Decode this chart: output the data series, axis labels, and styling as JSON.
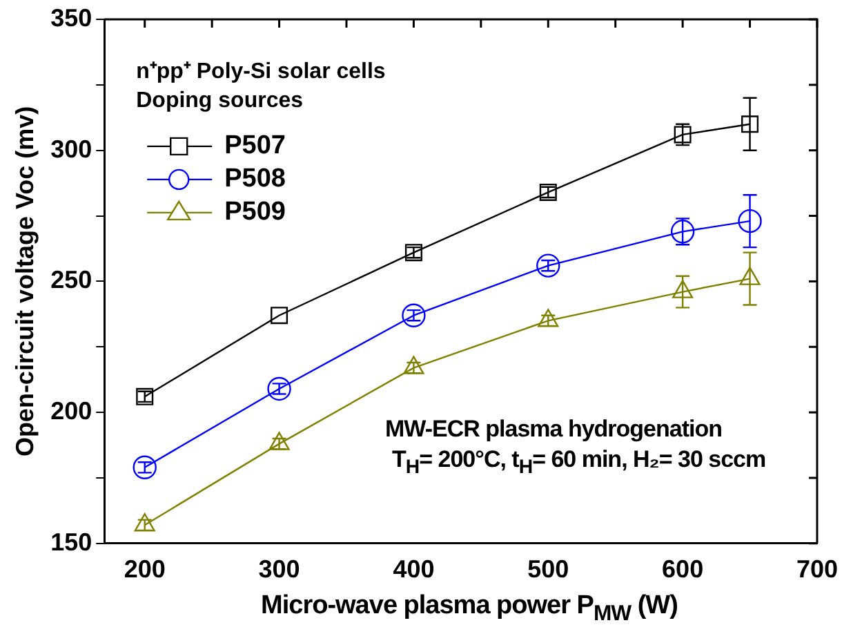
{
  "chart_data": {
    "type": "line",
    "xlabel": "Micro-wave plasma power P$_{MW}$ (W)",
    "ylabel": "Open-circuit voltage Voc (mv)",
    "legend_title": "n⁺pp⁺ Poly-Si solar cells\nDoping sources",
    "legend": "top left",
    "x": [
      200,
      300,
      400,
      500,
      600,
      650
    ],
    "xlim": [
      170,
      700
    ],
    "xticks": [
      200,
      {
        "value": 250,
        "label": null
      },
      300,
      {
        "value": 350,
        "label": null
      },
      400,
      {
        "value": 450,
        "label": null
      },
      500,
      {
        "value": 550,
        "label": null
      },
      600,
      {
        "value": 650,
        "label": null
      },
      700
    ],
    "ylim": [
      150,
      350
    ],
    "yticks": [
      150,
      {
        "value": 175,
        "label": null
      },
      200,
      {
        "value": 225,
        "label": null
      },
      250,
      {
        "value": 275,
        "label": null
      },
      300,
      {
        "value": 325,
        "label": null
      },
      350
    ],
    "grid": false,
    "line_style": "solid",
    "series": [
      {
        "name": "P507",
        "color": "#000000",
        "marker": "square",
        "values": [
          206,
          237,
          261,
          284,
          306,
          310
        ],
        "errors": [
          2,
          null,
          2,
          2,
          4,
          10
        ]
      },
      {
        "name": "P508",
        "color": "#0000ff",
        "marker": "circle",
        "values": [
          179,
          209,
          237,
          256,
          269,
          273
        ],
        "errors": [
          2,
          2,
          2,
          2,
          5,
          10
        ]
      },
      {
        "name": "P509",
        "color": "#808000",
        "marker": "triangle",
        "values": [
          157,
          188,
          217,
          235,
          246,
          251
        ],
        "errors": [
          2,
          2,
          2,
          2,
          6,
          10
        ]
      }
    ],
    "annotations": [
      "MW-ECR plasma hydrogenation",
      "T$_{H}$= 200°C, t$_{H}$= 60 min, H₂= 30 sccm"
    ]
  }
}
